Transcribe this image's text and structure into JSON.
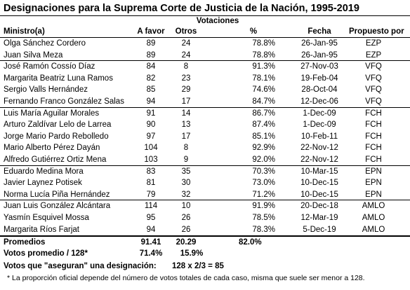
{
  "title": "Designaciones para la Suprema Corte de Justicia de la Nación, 1995-2019",
  "header": {
    "group": "Votaciones",
    "columns": [
      "Ministro(a)",
      "A favor",
      "Otros",
      "%",
      "Fecha",
      "Propuesto por"
    ]
  },
  "groups": [
    {
      "rows": [
        [
          "Olga Sánchez Cordero",
          "89",
          "24",
          "78.8%",
          "26-Jan-95",
          "EZP"
        ],
        [
          "Juan Silva Meza",
          "89",
          "24",
          "78.8%",
          "26-Jan-95",
          "EZP"
        ]
      ]
    },
    {
      "rows": [
        [
          "José Ramón Cossío Díaz",
          "84",
          "8",
          "91.3%",
          "27-Nov-03",
          "VFQ"
        ],
        [
          "Margarita Beatriz Luna Ramos",
          "82",
          "23",
          "78.1%",
          "19-Feb-04",
          "VFQ"
        ],
        [
          "Sergio Valls Hernández",
          "85",
          "29",
          "74.6%",
          "28-Oct-04",
          "VFQ"
        ],
        [
          "Fernando Franco González Salas",
          "94",
          "17",
          "84.7%",
          "12-Dec-06",
          "VFQ"
        ]
      ]
    },
    {
      "rows": [
        [
          "Luis María Aguilar Morales",
          "91",
          "14",
          "86.7%",
          "1-Dec-09",
          "FCH"
        ],
        [
          "Arturo Zaldívar Lelo de Larrea",
          "90",
          "13",
          "87.4%",
          "1-Dec-09",
          "FCH"
        ],
        [
          "Jorge Mario Pardo Rebolledo",
          "97",
          "17",
          "85.1%",
          "10-Feb-11",
          "FCH"
        ],
        [
          "Mario Alberto Pérez Dayán",
          "104",
          "8",
          "92.9%",
          "22-Nov-12",
          "FCH"
        ],
        [
          "Alfredo Gutiérrez Ortiz Mena",
          "103",
          "9",
          "92.0%",
          "22-Nov-12",
          "FCH"
        ]
      ]
    },
    {
      "rows": [
        [
          "Eduardo Medina Mora",
          "83",
          "35",
          "70.3%",
          "10-Mar-15",
          "EPN"
        ],
        [
          "Javier Laynez Potisek",
          "81",
          "30",
          "73.0%",
          "10-Dec-15",
          "EPN"
        ],
        [
          "Norma Lucía Piña Hernández",
          "79",
          "32",
          "71.2%",
          "10-Dec-15",
          "EPN"
        ]
      ]
    },
    {
      "rows": [
        [
          "Juan Luis González Alcántara",
          "114",
          "10",
          "91.9%",
          "20-Dec-18",
          "AMLO"
        ],
        [
          "Yasmín Esquivel Mossa",
          "95",
          "26",
          "78.5%",
          "12-Mar-19",
          "AMLO"
        ],
        [
          "Margarita Ríos Farjat",
          "94",
          "26",
          "78.3%",
          "5-Dec-19",
          "AMLO"
        ]
      ]
    }
  ],
  "summary": {
    "averages": [
      "Promedios",
      "91.41",
      "20.29",
      "82.0%"
    ],
    "per128": [
      "Votos promedio / 128*",
      "71.4%",
      "15.9%"
    ],
    "threshold": [
      "Votos que \"aseguran\" una designación:",
      "128 x 2/3 = 85"
    ]
  },
  "footnote": "* La proporción oficial depende del número de votos totales de cada caso, misma que suele ser menor a 128."
}
